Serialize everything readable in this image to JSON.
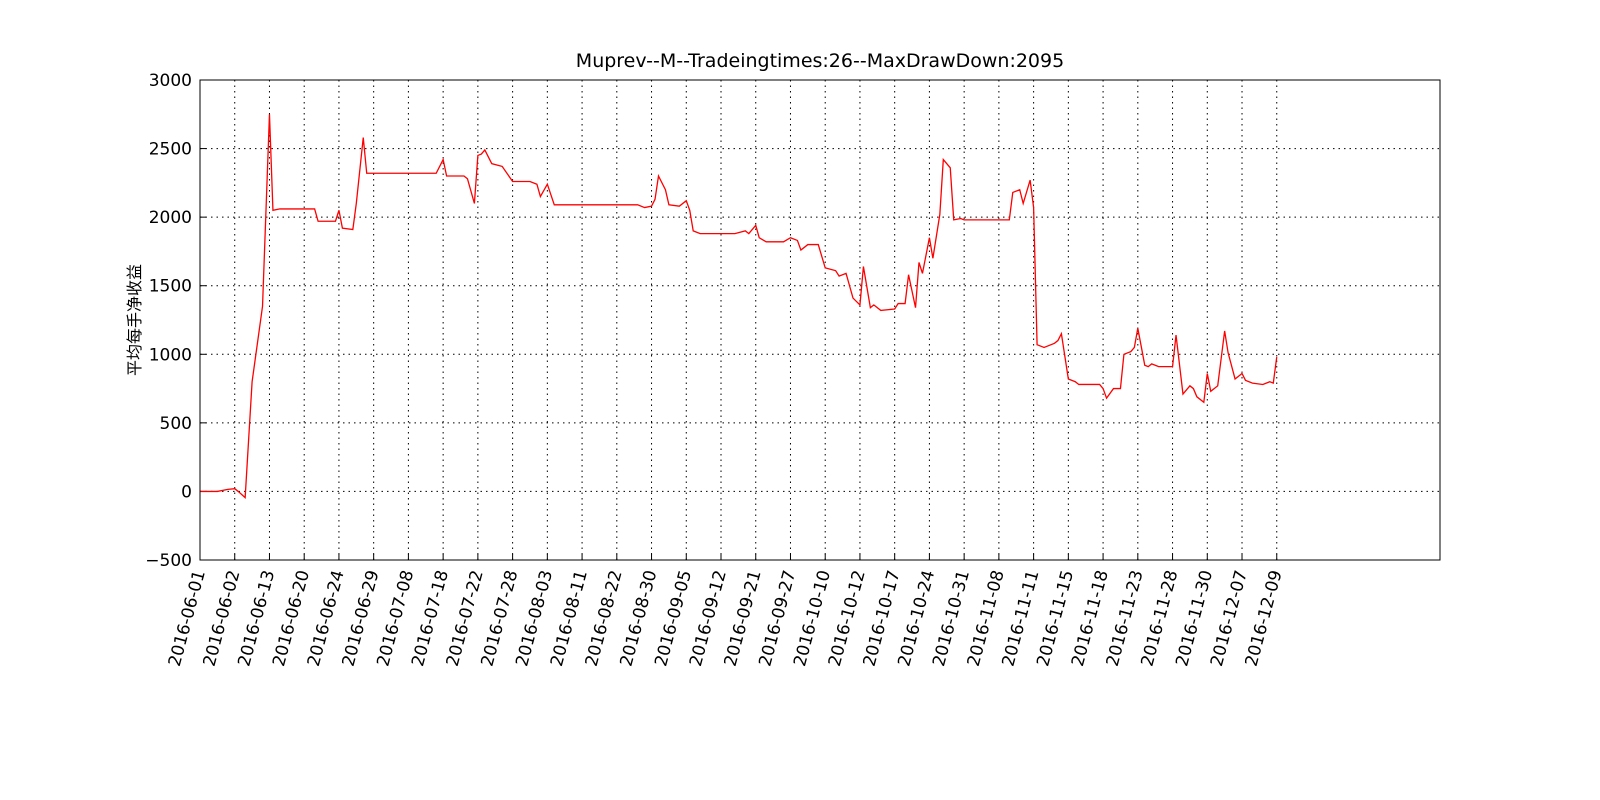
{
  "chart_data": {
    "type": "line",
    "title": "Muprev--M--Tradeingtimes:26--MaxDrawDown:2095",
    "y_label": "平均每手净收益",
    "x": [
      0,
      5,
      8,
      10,
      11,
      13,
      15,
      18,
      20,
      21,
      23,
      33,
      34,
      39,
      40,
      41,
      44,
      45,
      47,
      48,
      68,
      70,
      71,
      76,
      77,
      79,
      80,
      81,
      82,
      84,
      87,
      90,
      95,
      97,
      98,
      100,
      102,
      126,
      128,
      130,
      131,
      132,
      134,
      135,
      138,
      140,
      141,
      142,
      144,
      154,
      157,
      158,
      160,
      161,
      163,
      168,
      170,
      172,
      173,
      175,
      178,
      180,
      183,
      184,
      186,
      188,
      190,
      191,
      193,
      194,
      196,
      200,
      201,
      203,
      204,
      206,
      207,
      208,
      210,
      211,
      213,
      214,
      216,
      217,
      219,
      220,
      233,
      234,
      236,
      237,
      239,
      240,
      241,
      243,
      246,
      247,
      248,
      250,
      252,
      253,
      259,
      260,
      261,
      263,
      265,
      266,
      268,
      269,
      270,
      272,
      273,
      274,
      276,
      280,
      281,
      283,
      285,
      286,
      287,
      289,
      290,
      291,
      293,
      295,
      296,
      298,
      300,
      301,
      303,
      306,
      308,
      309,
      310
    ],
    "series": [
      {
        "name": "net",
        "color": "#ff0000",
        "values": [
          0,
          0,
          15,
          20,
          0,
          -45,
          800,
          1350,
          2750,
          2050,
          2060,
          2060,
          1970,
          1970,
          2050,
          1920,
          1910,
          2100,
          2580,
          2320,
          2320,
          2420,
          2300,
          2300,
          2280,
          2100,
          2450,
          2460,
          2490,
          2390,
          2370,
          2260,
          2260,
          2240,
          2150,
          2240,
          2090,
          2090,
          2070,
          2080,
          2130,
          2300,
          2200,
          2090,
          2080,
          2120,
          2050,
          1900,
          1880,
          1880,
          1900,
          1880,
          1940,
          1850,
          1820,
          1820,
          1850,
          1830,
          1760,
          1800,
          1800,
          1630,
          1610,
          1570,
          1590,
          1410,
          1360,
          1640,
          1340,
          1360,
          1320,
          1330,
          1370,
          1370,
          1580,
          1340,
          1670,
          1590,
          1850,
          1700,
          2020,
          2420,
          2360,
          1980,
          1990,
          1980,
          1980,
          2180,
          2200,
          2100,
          2270,
          2070,
          1070,
          1050,
          1080,
          1100,
          1150,
          820,
          800,
          780,
          780,
          750,
          680,
          750,
          750,
          1000,
          1020,
          1050,
          1190,
          920,
          910,
          930,
          910,
          910,
          1140,
          710,
          770,
          750,
          690,
          650,
          860,
          730,
          770,
          1170,
          1010,
          820,
          860,
          810,
          790,
          780,
          800,
          790,
          980
        ]
      }
    ],
    "xlim": [
      0,
      357
    ],
    "xticks": [
      {
        "value": 0,
        "label": "2016-06-01"
      },
      {
        "value": 10,
        "label": "2016-06-02"
      },
      {
        "value": 20,
        "label": "2016-06-13"
      },
      {
        "value": 30,
        "label": "2016-06-20"
      },
      {
        "value": 40,
        "label": "2016-06-24"
      },
      {
        "value": 50,
        "label": "2016-06-29"
      },
      {
        "value": 60,
        "label": "2016-07-08"
      },
      {
        "value": 70,
        "label": "2016-07-18"
      },
      {
        "value": 80,
        "label": "2016-07-22"
      },
      {
        "value": 90,
        "label": "2016-07-28"
      },
      {
        "value": 100,
        "label": "2016-08-03"
      },
      {
        "value": 110,
        "label": "2016-08-11"
      },
      {
        "value": 120,
        "label": "2016-08-22"
      },
      {
        "value": 130,
        "label": "2016-08-30"
      },
      {
        "value": 140,
        "label": "2016-09-05"
      },
      {
        "value": 150,
        "label": "2016-09-12"
      },
      {
        "value": 160,
        "label": "2016-09-21"
      },
      {
        "value": 170,
        "label": "2016-09-27"
      },
      {
        "value": 180,
        "label": "2016-10-10"
      },
      {
        "value": 190,
        "label": "2016-10-12"
      },
      {
        "value": 200,
        "label": "2016-10-17"
      },
      {
        "value": 210,
        "label": "2016-10-24"
      },
      {
        "value": 220,
        "label": "2016-10-31"
      },
      {
        "value": 230,
        "label": "2016-11-08"
      },
      {
        "value": 240,
        "label": "2016-11-11"
      },
      {
        "value": 250,
        "label": "2016-11-15"
      },
      {
        "value": 260,
        "label": "2016-11-18"
      },
      {
        "value": 270,
        "label": "2016-11-23"
      },
      {
        "value": 280,
        "label": "2016-11-28"
      },
      {
        "value": 290,
        "label": "2016-11-30"
      },
      {
        "value": 300,
        "label": "2016-12-07"
      },
      {
        "value": 310,
        "label": "2016-12-09"
      }
    ],
    "ylim": [
      -500,
      3000
    ],
    "yticks": [
      {
        "value": -500,
        "label": "−500"
      },
      0,
      500,
      1000,
      1500,
      2000,
      2500,
      3000
    ],
    "grid": true
  }
}
